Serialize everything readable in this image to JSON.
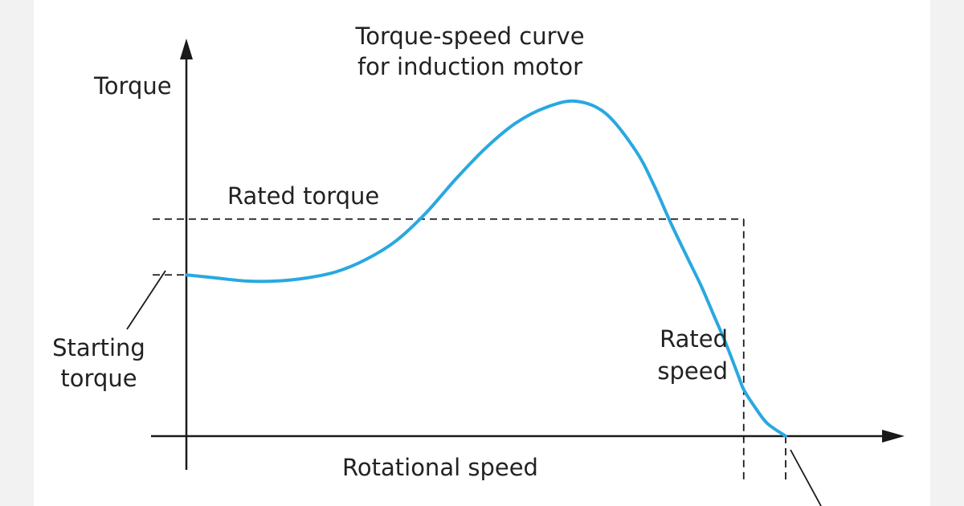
{
  "chart_data": {
    "type": "line",
    "title": [
      "Torque-speed curve",
      "for induction motor"
    ],
    "ylabel": "Torque",
    "xlabel": "Rotational speed",
    "annotations": {
      "rated_torque": "Rated torque",
      "starting_torque": [
        "Starting",
        "torque"
      ],
      "rated_speed": [
        "Rated",
        "speed"
      ]
    },
    "series": [
      {
        "color": "#29a8e0",
        "x": [
          0,
          5,
          10,
          15,
          20,
          25,
          30,
          35,
          40,
          45,
          50,
          55,
          60,
          65,
          70,
          75,
          78,
          81,
          84,
          86,
          88,
          90,
          92,
          93,
          95,
          97,
          100
        ],
        "y": [
          52,
          51,
          50,
          50,
          51,
          53,
          57,
          63,
          72,
          83,
          93,
          101,
          106,
          108,
          104,
          92,
          81,
          68,
          56,
          48,
          39,
          30,
          20,
          15,
          9,
          4,
          0
        ]
      }
    ],
    "reference_lines": {
      "rated_torque": 70,
      "starting_torque": 52,
      "rated_speed": 93,
      "synchronous_speed": 100
    },
    "grid": false
  }
}
